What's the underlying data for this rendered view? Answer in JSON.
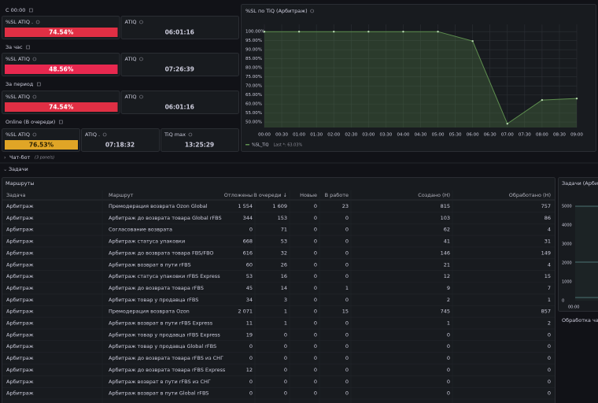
{
  "stat_rows": [
    {
      "title": "С 00:00",
      "panels": [
        {
          "title": "%SL ATIQ .",
          "value": "74.54%",
          "color": "#e02f44"
        },
        {
          "title": "ATIQ",
          "value": "06:01:16"
        }
      ]
    },
    {
      "title": "За час",
      "panels": [
        {
          "title": "%SL ATIQ",
          "value": "48.56%",
          "color": "#e8284f"
        },
        {
          "title": "ATIQ",
          "value": "07:26:39"
        }
      ]
    },
    {
      "title": "За период",
      "panels": [
        {
          "title": "%SL ATIQ",
          "value": "74.54%",
          "color": "#e02f44"
        },
        {
          "title": "ATIQ",
          "value": "06:01:16"
        }
      ]
    },
    {
      "title": "Online (В очереди)",
      "panels": [
        {
          "title": "%SL ATIQ",
          "value": "76.53%",
          "color": "#e0a526"
        },
        {
          "title": "ATIQ .",
          "value": "07:18:32"
        },
        {
          "title": "TiQ max",
          "value": "13:25:29"
        }
      ]
    }
  ],
  "chart_data": {
    "type": "line",
    "title": "%SL по TiQ (Арбитраж)",
    "x": [
      0,
      1,
      2,
      3,
      4,
      5,
      6,
      7,
      8,
      9
    ],
    "series": [
      {
        "name": "%SL_TiQ",
        "color": "#5e8f4f",
        "values": [
          100,
          100,
          100,
          100,
          100,
          100,
          94.8,
          49.1,
          62.2,
          63.03
        ]
      }
    ],
    "legend_stat": "Last *: 63.03%",
    "xlim": [
      0,
      9
    ],
    "ylim": [
      47,
      104
    ],
    "xticks": [
      {
        "value": 0,
        "label": "00:00"
      },
      {
        "value": 0.5,
        "label": "00:30"
      },
      {
        "value": 1,
        "label": "01:00"
      },
      {
        "value": 1.5,
        "label": "01:30"
      },
      {
        "value": 2,
        "label": "02:00"
      },
      {
        "value": 2.5,
        "label": "02:30"
      },
      {
        "value": 3,
        "label": "03:00"
      },
      {
        "value": 3.5,
        "label": "03:30"
      },
      {
        "value": 4,
        "label": "04:00"
      },
      {
        "value": 4.5,
        "label": "04:30"
      },
      {
        "value": 5,
        "label": "05:00"
      },
      {
        "value": 5.5,
        "label": "05:30"
      },
      {
        "value": 6,
        "label": "06:00"
      },
      {
        "value": 6.5,
        "label": "06:30"
      },
      {
        "value": 7,
        "label": "07:00"
      },
      {
        "value": 7.5,
        "label": "07:30"
      },
      {
        "value": 8,
        "label": "08:00"
      },
      {
        "value": 8.5,
        "label": "08:30"
      },
      {
        "value": 9,
        "label": "09:00"
      }
    ],
    "yticks": [
      {
        "value": 100,
        "label": "100.00%"
      },
      {
        "value": 95,
        "label": "95.00%"
      },
      {
        "value": 90,
        "label": "90.00%"
      },
      {
        "value": 85,
        "label": "85.00%"
      },
      {
        "value": 80,
        "label": "80.00%"
      },
      {
        "value": 75,
        "label": "75.00%"
      },
      {
        "value": 70,
        "label": "70.00%"
      },
      {
        "value": 65,
        "label": "65.00%"
      },
      {
        "value": 60,
        "label": "60.00%"
      },
      {
        "value": 55,
        "label": "55.00%"
      },
      {
        "value": 50,
        "label": "50.00%"
      }
    ],
    "grid": true
  },
  "rows": [
    {
      "title": "Чат-бот",
      "note": "(3 panels)"
    },
    {
      "title": "Задачи"
    }
  ],
  "table": {
    "title": "Маршруты",
    "columns": [
      "Задача",
      "Маршрут",
      "Отложены",
      "В очереди ↓",
      "Новые",
      "В работе",
      "Создано (Н)",
      "Обработано (Н)"
    ],
    "rows": [
      [
        "Арбитраж",
        "Премодерация возврата Ozon Global",
        "1 554",
        "1 609",
        "0",
        "23",
        "815",
        "757"
      ],
      [
        "Арбитраж",
        "Арбитраж до возврата товара Global rFBS",
        "344",
        "153",
        "0",
        "0",
        "103",
        "86"
      ],
      [
        "Арбитраж",
        "Согласование возврата",
        "0",
        "71",
        "0",
        "0",
        "62",
        "4"
      ],
      [
        "Арбитраж",
        "Арбитраж статуса упаковки",
        "668",
        "53",
        "0",
        "0",
        "41",
        "31"
      ],
      [
        "Арбитраж",
        "Арбитраж до возврата товара FBS/FBO",
        "616",
        "32",
        "0",
        "0",
        "146",
        "149"
      ],
      [
        "Арбитраж",
        "Арбитраж возврат в пути rFBS",
        "60",
        "26",
        "0",
        "0",
        "21",
        "4"
      ],
      [
        "Арбитраж",
        "Арбитраж статуса упаковки rFBS Express",
        "53",
        "16",
        "0",
        "0",
        "12",
        "15"
      ],
      [
        "Арбитраж",
        "Арбитраж до возврата товара rFBS",
        "45",
        "14",
        "0",
        "1",
        "9",
        "7"
      ],
      [
        "Арбитраж",
        "Арбитраж товар у продавца rFBS",
        "34",
        "3",
        "0",
        "0",
        "2",
        "1"
      ],
      [
        "Арбитраж",
        "Премодерация возврата Ozon",
        "2 071",
        "1",
        "0",
        "15",
        "745",
        "857"
      ],
      [
        "Арбитраж",
        "Арбитраж возврат в пути rFBS Express",
        "11",
        "1",
        "0",
        "0",
        "1",
        "2"
      ],
      [
        "Арбитраж",
        "Арбитраж товар у продавца rFBS Express",
        "19",
        "0",
        "0",
        "0",
        "0",
        "0"
      ],
      [
        "Арбитраж",
        "Арбитраж товар у продавца Global rFBS",
        "0",
        "0",
        "0",
        "0",
        "0",
        "0"
      ],
      [
        "Арбитраж",
        "Арбитраж до возврата товара rFBS из СНГ",
        "0",
        "0",
        "0",
        "0",
        "0",
        "0"
      ],
      [
        "Арбитраж",
        "Арбитраж до возврата товара rFBS Express",
        "12",
        "0",
        "0",
        "0",
        "0",
        "0"
      ],
      [
        "Арбитраж",
        "Арбитраж возврат в пути rFBS из СНГ",
        "0",
        "0",
        "0",
        "0",
        "0",
        "0"
      ],
      [
        "Арбитраж",
        "Арбитраж возврат в пути Global rFBS",
        "0",
        "0",
        "0",
        "0",
        "0",
        "0"
      ]
    ]
  },
  "side_panel": {
    "title": "Задачи (Арбитраж",
    "yticks": [
      "5000",
      "4000",
      "3000",
      "2000",
      "1000",
      "0"
    ],
    "xtick": "00:00",
    "next_title": "Обработка чат"
  }
}
